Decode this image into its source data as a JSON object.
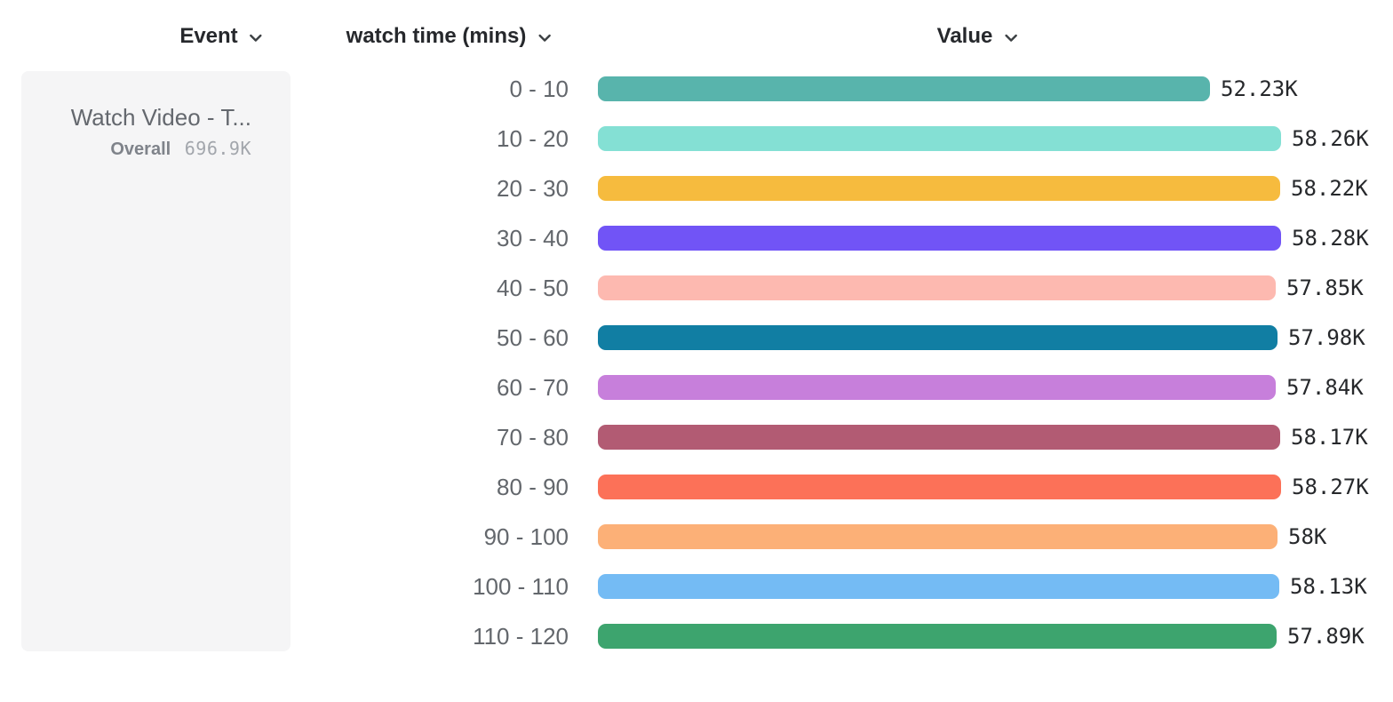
{
  "headers": {
    "event": "Event",
    "watch_time": "watch time (mins)",
    "value": "Value"
  },
  "event_card": {
    "title": "Watch Video - T...",
    "overall_label": "Overall",
    "overall_value": "696.9K"
  },
  "icons": {
    "header_dropdown": "chevron-down-icon"
  },
  "colors": {
    "page_background": "#ffffff",
    "card_background": "#f5f5f6",
    "header_text": "#26282c",
    "row_label_text": "#63676c",
    "value_text": "#26282b"
  },
  "chart_data": {
    "type": "bar",
    "orientation": "horizontal",
    "title": "",
    "xlabel": "Value",
    "ylabel": "watch time (mins)",
    "xlim": [
      0,
      58280
    ],
    "grid": false,
    "legend": false,
    "categories": [
      "0 - 10",
      "10 - 20",
      "20 - 30",
      "30 - 40",
      "40 - 50",
      "50 - 60",
      "60 - 70",
      "70 - 80",
      "80 - 90",
      "90 - 100",
      "100 - 110",
      "110 - 120"
    ],
    "values": [
      52230,
      58260,
      58220,
      58280,
      57850,
      57980,
      57840,
      58170,
      58270,
      58000,
      58130,
      57890
    ],
    "value_labels": [
      "52.23K",
      "58.26K",
      "58.22K",
      "58.28K",
      "57.85K",
      "57.98K",
      "57.84K",
      "58.17K",
      "58.27K",
      "58K",
      "58.13K",
      "57.89K"
    ],
    "bar_colors": [
      "#58B4AC",
      "#84E0D4",
      "#F6BB3E",
      "#7154F6",
      "#FDB9B0",
      "#117EA3",
      "#C77FDB",
      "#B25B73",
      "#FC7158",
      "#FCB077",
      "#74BBF4",
      "#3DA46E"
    ]
  }
}
